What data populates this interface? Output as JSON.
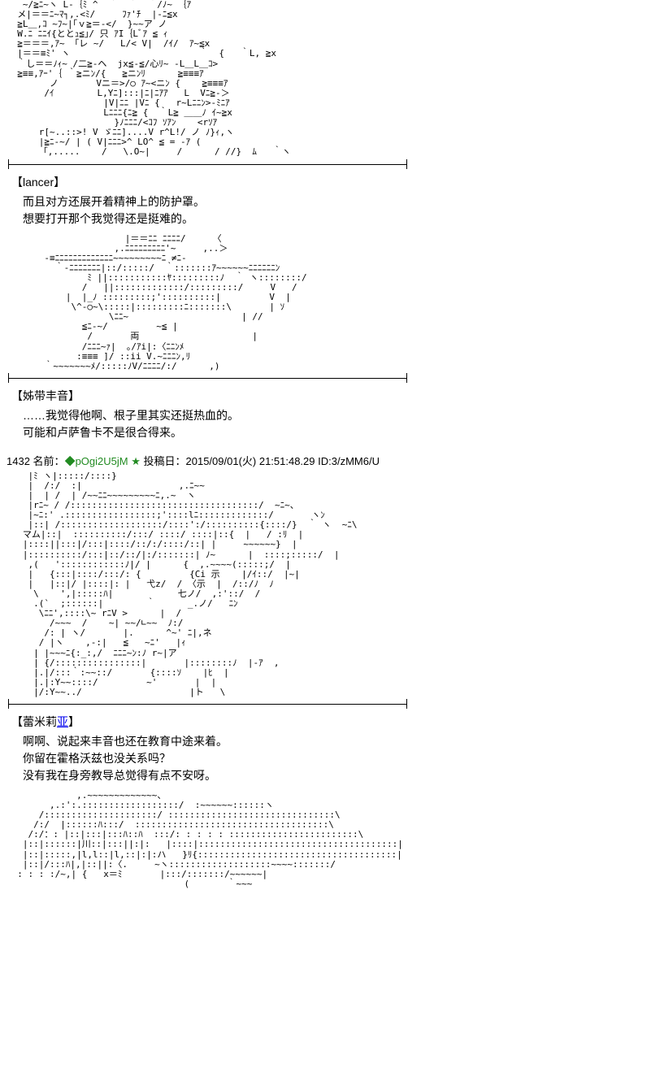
{
  "colors": {
    "background": "#ffffff",
    "text": "#000000",
    "trip": "#228b22",
    "link": "#0000ee"
  },
  "blocks": [
    {
      "type": "aa",
      "content": "   ~/≧ﾆ~ヽ L-｛ﾐ ^  ｀  ｀  ｀/ﾉ~ ｛ｱ\n  メ|＝＝ﾆ~ﾏ┐,.<ﾐ/     ﾌｧ'ﾁ  |-ﾆ≦x\n  ≧L＿,ｺ ~ﾌ~|｢ｖ≧＝-</  }~~ア ノ\n  W.ﾆ ﾆﾆｲ{ととｭ≦｣/ 只 ｱI｛Lﾞｱ ≦ ｨ\n  ≧＝＝＝,ｱ~ 「レ ~/   L/< V|  /ｲ/  ｱ~≦x\n  |＝＝≡ﾐ' ヽ                        ｀  {   ｀L, ≧x\n  ｀し＝＝ﾉｨ~ /二≧-ヘ  jx≦-≦/心ﾘ~ -L＿L＿ｺ>\n  ≧≡≡,ｱｰ'｛ ｀≧ニﾝ/{   ≧ニﾝﾘ      ≧≡≡≡ｱ\n        ノ       Vニ＝>/○ ｱ~<ニﾝ {    ≧≡≡≡ｱ\n       /ｲ        L,Yﾆ]:::|ﾆ|ﾆｱｱ   L  Vﾆ≧-＞\n                  |V|ﾆﾆ |Vﾆ {   r~Lﾆﾆﾝ>-ﾐﾆｱ\n                  Lﾆﾆﾆ{ﾆ≧ {  ｀L≧ ＿＿ﾉ ｲ~≧x\n                    }ﾉﾆﾆﾆ/<ｺﾌ ｿｱﾝ    <rｿｱ\n      r[~..::>! V ゞﾆﾆ]....V r^L!/ ノ ﾉ}ｨ,ヽ\n      |≧ﾆ-~/ | ( V|ﾆﾆﾆ>^ LO^ ≦ = -ｱ (\n      「,.....    /   \\.O~|     /      / //}  ﾑ   ｀ヽ"
    },
    {
      "type": "divider"
    },
    {
      "type": "speaker",
      "name": "【lancer】",
      "lines": [
        "而且对方还展开着精神上的防护罩。",
        "想要打开那个我觉得还是挺难的。"
      ]
    },
    {
      "type": "aa",
      "content": "                      |＝＝ﾆﾆ ﾆﾆﾆﾆ/     〈\n                    ,.ﾆﾆﾆﾆﾆﾆﾆﾆﾆ'~     ,..＞\n       -≡ﾆﾆﾆﾆﾆﾆﾆﾆﾆﾆﾆﾆﾆ~~~~~~~~~ﾆ ≠ﾆ-\n         ｀-ﾆﾆﾆﾆﾆﾆﾆ|::/:::::/  ｀:::::::ｱ~~~~~~ﾆﾆﾆﾆﾆﾆﾝ\n               ﾐ ||:::::::::::ﾔ:::::::::ﾉ  ｀ ヽ::::::::/\n              /   ||:::::::::::::/:::::::::/     V   /\n           |  |_ﾉ :::::::::;'::::::::::|         V  |\n            \\^-○~\\:::::|:::::::::ﾆ:::::::\\       | ｿ\n                   \\ﾆﾆ~                     | //\n              ≦ﾆ-~/         ~≦ |\n               /       両                     |\n              /ﾆﾆﾆ~ｧ|  ｡/ｱi|:〈ﾆﾆﾝﾒ\n             :≡≡≡ ]/ ::ii V.~ﾆﾆﾆﾝ,ﾘ\n       ｀~~~~~~~ﾒ/:::::ﾉV/ﾆﾆﾆﾆ/:/      ,)"
    },
    {
      "type": "divider"
    },
    {
      "type": "speaker",
      "name": "【姊带丰音】",
      "lines": [
        "……我觉得他啊、根子里其实还挺热血的。",
        "可能和卢萨鲁卡不是很合得来。"
      ]
    },
    {
      "type": "post_header",
      "number": "1432",
      "label_name": "名前：",
      "trip": "◆pOgi2U5jM",
      "star": "★",
      "label_date": "投稿日：",
      "date": "2015/09/01(火) 21:51:48.29",
      "id": "ID:3/zMM6/U"
    },
    {
      "type": "aa",
      "content": "    |ﾐ ヽ|:::::/::::}\n    |  /:/  :|                  ,.ﾆ~~\n    |  | /  | /~~ﾆﾆ~~~~~~~~~ﾆ,.~  ヽ\n    |rﾆ~ / /:::::::::::::::::::::::::::::::::::/  ~ﾆ~、\n    |~ﾆ:' .:::::::::::::::::;'::::lﾆ:::::::::::::/       ヽﾝ\n    |::| /:::::::::::::::::::/::::':/::::::::::{::::/}  ｀ ヽ  ~ﾆ\\\n   マム|::|  ::::::::::/:::/ ::::/ ::::|::{  |   / :ﾘ  |\n   |::::||:::|/:::|::::/::/:/::::/::| |     ~~~~~~}  |\n   |::::::::::/:::|::/::/|:/:::::::| ﾉ~      |  ::::;:::::/  |\n    ,(   '::::::::::::ﾉ|/ |      {  ,.~~~~(:::::;/  |\n    |   {:::|::::/:::/: {         {Ci 示    |/ｲ::/  |~|\n    |   |::|/ |::::|: |   弋z/  / 〈示  |  /::/ﾉ  ﾉ\n     \\    ',|:::::ﾊ|            七ノ/  ,:'::/  /\n     .(`  ;::::::|        ｀      _.ノ/   ﾆﾝ\n      \\ﾆﾆ',::::\\~ rﾆV >      |  /\n        /~~~  /    ~| ~~/∟~~  ﾉ:/\n       /: | ヽ/       |.      ^~' ﾆ|,ネ\n      / |ヽ    ,-:|   ≦   ~ﾆ'   |ｨ\n     | |~~~ﾆ{:_:,/  ﾆﾆﾆ~ﾝ:ﾉ r~|ア\n     | {/::::::::::::::::|       |::::::::ﾉ  |-ｱ  ,\n     |.|/:::｀:~~::/       {::::ｿ    |ﾋ  |\n     |.|:Y~~::::/         ~'       |  |\n     |/:Y~~../                    |ト   \\"
    },
    {
      "type": "divider"
    },
    {
      "type": "speaker",
      "name_prefix": "【蕾米莉",
      "name_link": "亚",
      "name_suffix": "】",
      "lines": [
        "啊啊、说起来丰音也还在教育中途来着。",
        "你留在霍格沃兹也没关系吗？",
        "没有我在身旁教导总觉得有点不安呀。"
      ]
    },
    {
      "type": "aa",
      "content": "             ,.~~~~~~~~~~~~~、\n        ,.:':.::::::::::::::::::/  :~~~~~~::::::ヽ\n      /:::::::::::::::::::::/ :::::::::::::::::::::::::::::::\\\n     /:/  |::::::ﾊ:::/  ::::::::::::::::::::::::::::::::::::\\\n    /:/：: |::|:::|:::ﾊ::ﾊ  :::/: : : : : ::::::::::::::::::::::::\\\n   |::|::::::|川::|:::||:|:   |::::|:::::::::::::::::::::::::::::::::::::|\n   |::|:::::,|l,l::|l,::|:|:ハ   }ﾘ{:::::::::::::::::::::::::::::::::::::|\n   |::|/:::ﾊ|,|::||:〈.     ~ヽ:::::::::::::::::::~~~~:::::::/\n  : : : :/~,| {   x＝ﾐ       |:::/:::::::/~~~~~~|\n                                 (       ｀~~~"
    }
  ]
}
